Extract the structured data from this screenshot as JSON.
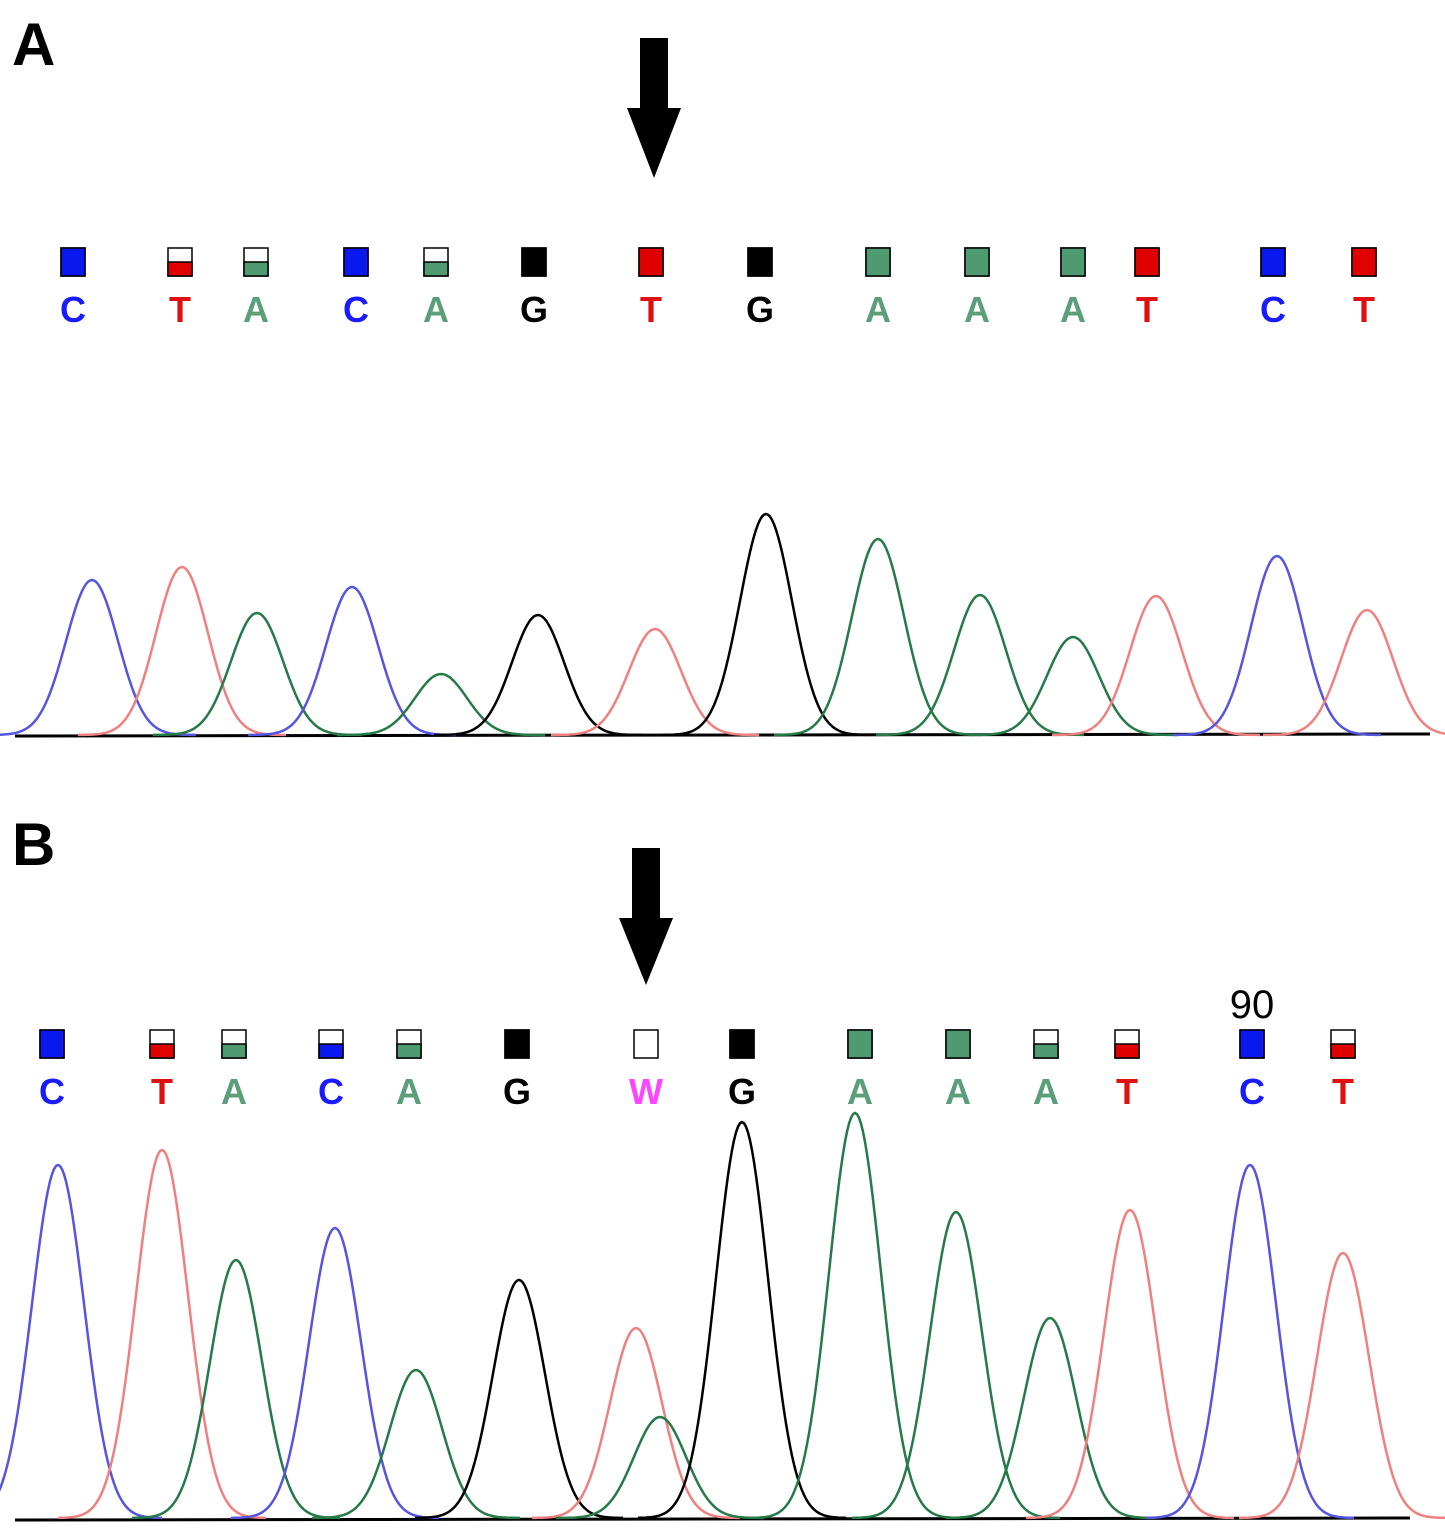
{
  "panels": [
    {
      "label": "A",
      "bases": [
        "C",
        "T",
        "A",
        "C",
        "A",
        "G",
        "T",
        "G",
        "A",
        "A",
        "A",
        "T",
        "C",
        "T"
      ]
    },
    {
      "label": "B",
      "bases": [
        "C",
        "T",
        "A",
        "C",
        "A",
        "G",
        "W",
        "G",
        "A",
        "A",
        "A",
        "T",
        "C",
        "T"
      ],
      "position_label": "90"
    }
  ]
}
